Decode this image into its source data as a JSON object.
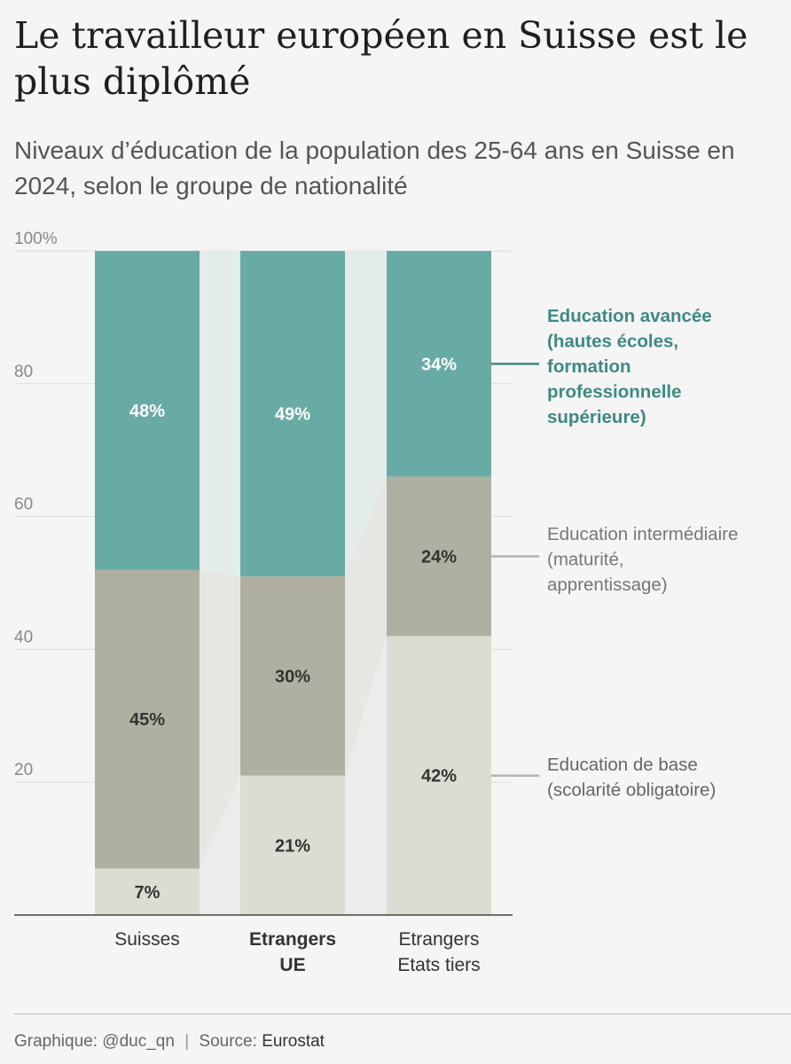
{
  "title": "Le travailleur européen en Suisse est le plus diplômé",
  "subtitle": "Niveaux d’éducation de la population des 25-64 ans en Suisse en 2024, selon le groupe de nationalité",
  "footer": {
    "graphic_label": "Graphique:",
    "graphic_author": "@duc_qn",
    "source_label": "Source:",
    "source_value": "Eurostat"
  },
  "chart_data": {
    "type": "bar",
    "stacked": true,
    "unit": "%",
    "ylim": [
      0,
      100
    ],
    "yticks": [
      {
        "value": 100,
        "label": "100%"
      },
      {
        "value": 80,
        "label": "80"
      },
      {
        "value": 60,
        "label": "60"
      },
      {
        "value": 40,
        "label": "40"
      },
      {
        "value": 20,
        "label": "20"
      }
    ],
    "categories": [
      {
        "lines": [
          "Suisses"
        ],
        "bold": false
      },
      {
        "lines": [
          "Etrangers",
          "UE"
        ],
        "bold": true
      },
      {
        "lines": [
          "Etrangers",
          "Etats tiers"
        ],
        "bold": false
      }
    ],
    "series": [
      {
        "id": "base",
        "name": "Education de base (scolarité obligatoire)",
        "legend_lines": [
          "Education de base",
          "(scolarité obligatoire)"
        ],
        "color": "#dcdcd3",
        "legend_color": "#666666",
        "legend_bold": false,
        "values": [
          7,
          21,
          42
        ],
        "labels": [
          "7%",
          "21%",
          "42%"
        ]
      },
      {
        "id": "intermediate",
        "name": "Education intermédiaire (maturité, apprentissage)",
        "legend_lines": [
          "Education intermédiaire",
          "(maturité,",
          "apprentissage)"
        ],
        "color": "#b0b0a2",
        "legend_color": "#777777",
        "legend_bold": false,
        "values": [
          45,
          30,
          24
        ],
        "labels": [
          "45%",
          "30%",
          "24%"
        ]
      },
      {
        "id": "advanced",
        "name": "Education avancée (hautes écoles, formation professionnelle supérieure)",
        "legend_lines": [
          "Education avancée",
          "(hautes écoles,",
          "formation",
          "professionnelle",
          "supérieure)"
        ],
        "color": "#68aba4",
        "legend_color": "#3d8a82",
        "legend_bold": true,
        "values": [
          48,
          49,
          34
        ],
        "labels": [
          "48%",
          "49%",
          "34%"
        ]
      }
    ],
    "colors": {
      "gridline": "#dedede",
      "axis": "#444444",
      "link_base": "#ececea",
      "link_intermediate": "#e6e6e2",
      "link_advanced": "#e3eceb",
      "label_dark": "#333333",
      "label_light": "#ffffff"
    }
  }
}
